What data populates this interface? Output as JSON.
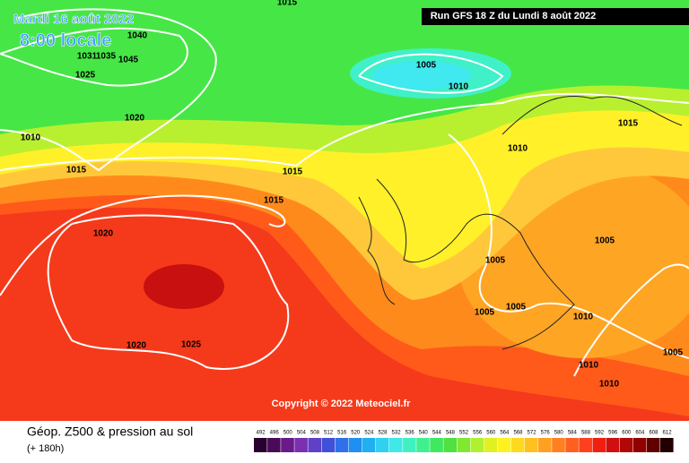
{
  "header": {
    "date": "Mardi 16 août 2022",
    "time": "8:00 locale",
    "run": "Run GFS 18 Z du Lundi 8 août 2022"
  },
  "isobar_labels": [
    "1015",
    "1040",
    "1031",
    "1035",
    "1045",
    "1025",
    "1005",
    "1010",
    "1020",
    "1010",
    "1015",
    "1010",
    "1015",
    "1015",
    "1015",
    "1020",
    "1005",
    "1005",
    "1005",
    "1005",
    "1010",
    "1020",
    "1025",
    "1005",
    "1010",
    "1010"
  ],
  "copyright": "Copyright © 2022 Meteociel.fr",
  "footer": {
    "title": "Géop. Z500 & pression au sol",
    "lead": "(+ 180h)"
  },
  "legend": [
    {
      "label": "492",
      "color": "#2a0030"
    },
    {
      "label": "496",
      "color": "#4a0a5a"
    },
    {
      "label": "500",
      "color": "#6a1a8a"
    },
    {
      "label": "504",
      "color": "#7a30b0"
    },
    {
      "label": "508",
      "color": "#6040c8"
    },
    {
      "label": "512",
      "color": "#4050d8"
    },
    {
      "label": "516",
      "color": "#3070e8"
    },
    {
      "label": "520",
      "color": "#2090f0"
    },
    {
      "label": "524",
      "color": "#20b0f0"
    },
    {
      "label": "528",
      "color": "#30d0f0"
    },
    {
      "label": "532",
      "color": "#40e8e8"
    },
    {
      "label": "536",
      "color": "#40f0c0"
    },
    {
      "label": "540",
      "color": "#40f090"
    },
    {
      "label": "544",
      "color": "#40e860"
    },
    {
      "label": "548",
      "color": "#50e040"
    },
    {
      "label": "552",
      "color": "#80e830"
    },
    {
      "label": "556",
      "color": "#b0f030"
    },
    {
      "label": "560",
      "color": "#e0f020"
    },
    {
      "label": "564",
      "color": "#fff020"
    },
    {
      "label": "568",
      "color": "#ffd820"
    },
    {
      "label": "572",
      "color": "#ffc020"
    },
    {
      "label": "576",
      "color": "#ffa020"
    },
    {
      "label": "580",
      "color": "#ff8020"
    },
    {
      "label": "584",
      "color": "#ff6020"
    },
    {
      "label": "588",
      "color": "#ff4020"
    },
    {
      "label": "592",
      "color": "#f02010"
    },
    {
      "label": "596",
      "color": "#d01010"
    },
    {
      "label": "600",
      "color": "#b00808"
    },
    {
      "label": "604",
      "color": "#900000"
    },
    {
      "label": "608",
      "color": "#600000"
    },
    {
      "label": "612",
      "color": "#200000"
    }
  ]
}
